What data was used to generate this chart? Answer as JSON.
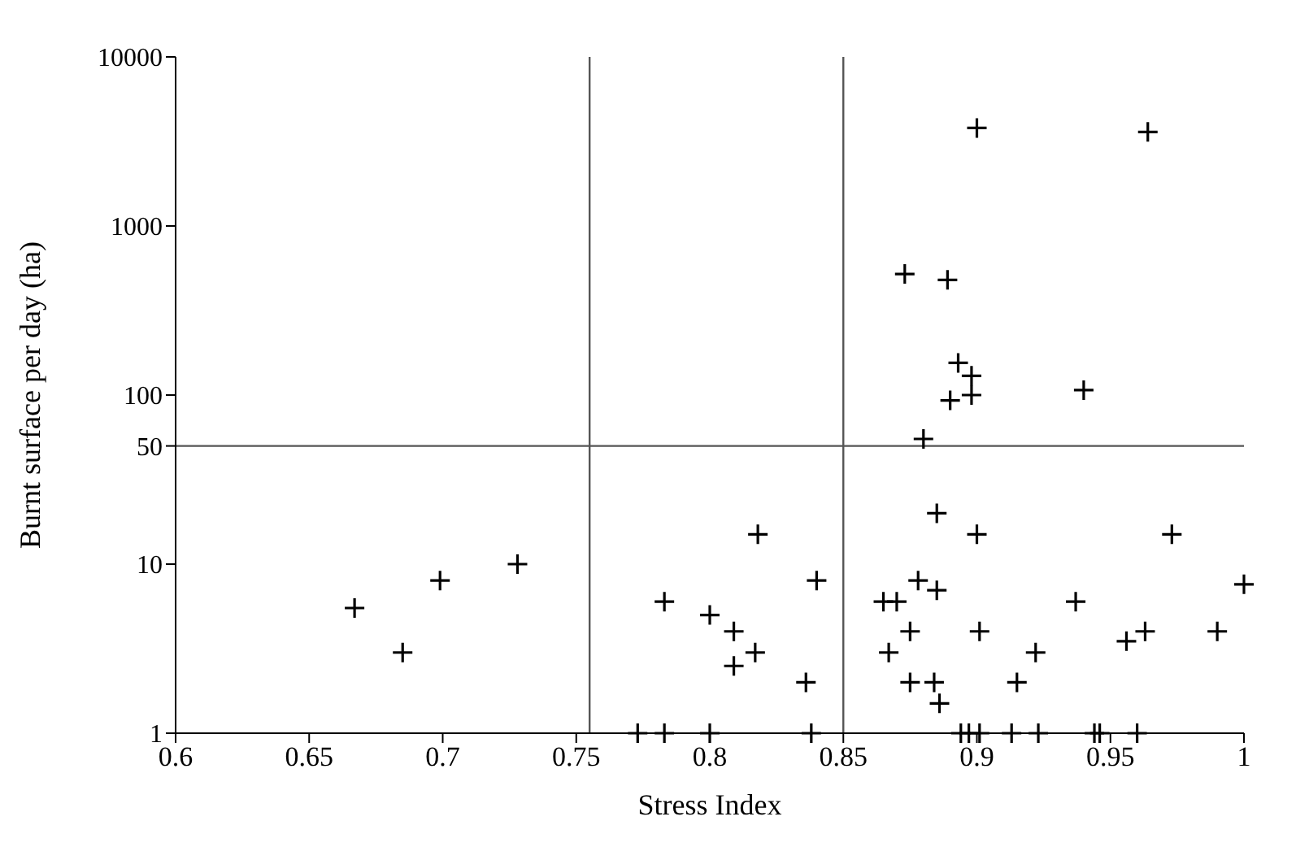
{
  "chart_data": {
    "type": "scatter",
    "xlabel": "Stress Index",
    "ylabel": "Burnt surface per day (ha)",
    "x": [
      0.667,
      0.685,
      0.699,
      0.728,
      0.783,
      0.8,
      0.773,
      0.783,
      0.8,
      0.818,
      0.84,
      0.809,
      0.817,
      0.809,
      0.836,
      0.838,
      0.88,
      0.885,
      0.9,
      0.973,
      0.878,
      0.885,
      0.865,
      0.87,
      0.937,
      1.0,
      0.875,
      0.901,
      0.963,
      0.99,
      0.956,
      0.867,
      0.922,
      0.875,
      0.884,
      0.915,
      0.886,
      0.894,
      0.897,
      0.901,
      0.913,
      0.923,
      0.944,
      0.946,
      0.96,
      0.89,
      0.898,
      0.94,
      0.9,
      0.964,
      0.873,
      0.889,
      0.893,
      0.898
    ],
    "series": [
      {
        "color": "#000000",
        "values": [
          5.5,
          3,
          8,
          10,
          6,
          5,
          1,
          1,
          1,
          15,
          8,
          4,
          3,
          2.5,
          2,
          1,
          55,
          20,
          15,
          15,
          8,
          7,
          6,
          6,
          6,
          7.6,
          4,
          4,
          4,
          4,
          3.5,
          3,
          3,
          2,
          2,
          2,
          1.5,
          1,
          1,
          1,
          1,
          1,
          1,
          1,
          1,
          93,
          100,
          107,
          3800,
          3600,
          520,
          480,
          155,
          130
        ]
      }
    ],
    "xlim": [
      0.6,
      1
    ],
    "xticks": [
      0.6,
      0.65,
      0.7,
      0.75,
      0.8,
      0.85,
      0.9,
      0.95,
      1
    ],
    "ylim": [
      1,
      10000
    ],
    "yticks": [
      1,
      10,
      50,
      100,
      1000,
      10000
    ],
    "log": "y",
    "ref_lines": [
      {
        "axis": "x",
        "value": 0.755,
        "color": "#555555"
      },
      {
        "axis": "x",
        "value": 0.85,
        "color": "#555555"
      },
      {
        "axis": "y",
        "value": 50,
        "color": "#555555"
      }
    ],
    "marker": "cross",
    "grid": false,
    "legend": false
  }
}
